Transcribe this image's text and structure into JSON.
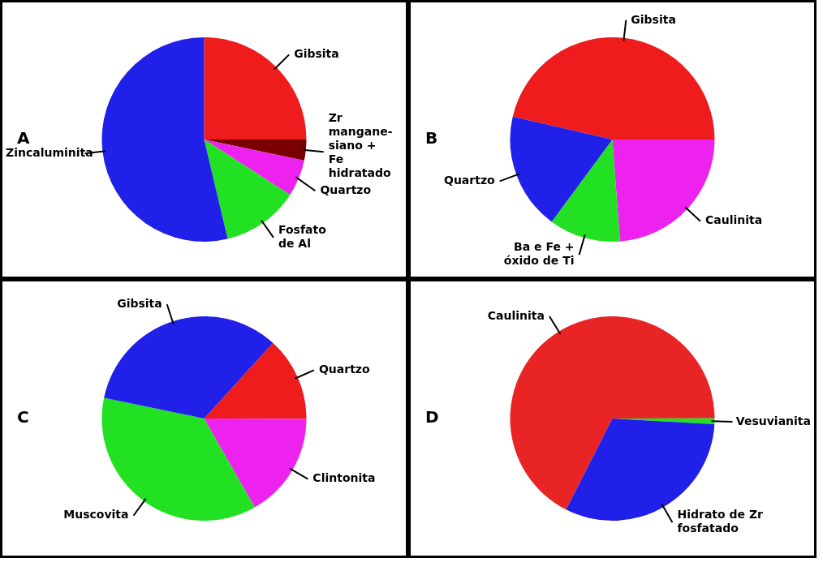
{
  "chart_data": [
    {
      "type": "pie",
      "title": "A",
      "categories": [
        "Gibsita",
        "Zr\nmangane-\nsiano +\nFe\nhidratado",
        "Quartzo",
        "Fosfato\nde Al",
        "Zincaluminita"
      ],
      "values": [
        25,
        3.3,
        5.8,
        12.2,
        53.7
      ],
      "colors": [
        "#ee1c1c",
        "#7a0000",
        "#ee22ee",
        "#22e022",
        "#2020e8"
      ],
      "legend": false
    },
    {
      "type": "pie",
      "title": "B",
      "categories": [
        "Gibsita",
        "Caulinita",
        "Ba e Fe +\nóxido de Ti",
        "Quartzo"
      ],
      "values": [
        46.4,
        23.8,
        11.3,
        18.5
      ],
      "colors": [
        "#ee1c1c",
        "#ee22ee",
        "#22e022",
        "#2020e8"
      ],
      "legend": false
    },
    {
      "type": "pie",
      "title": "C",
      "categories": [
        "Quartzo",
        "Clintonita",
        "Muscovita",
        "Gibsita"
      ],
      "values": [
        13.3,
        16.7,
        36.5,
        33.5
      ],
      "colors": [
        "#ee1c1c",
        "#ee22ee",
        "#22e022",
        "#2020e8"
      ],
      "legend": false
    },
    {
      "type": "pie",
      "title": "D",
      "categories": [
        "Caulinita",
        "Vesuvianita",
        "Hidrato de Zr\nfosfatado"
      ],
      "values": [
        67.5,
        0.9,
        31.6
      ],
      "colors": [
        "#e82424",
        "#22e022",
        "#2020e8"
      ],
      "legend": false
    }
  ]
}
